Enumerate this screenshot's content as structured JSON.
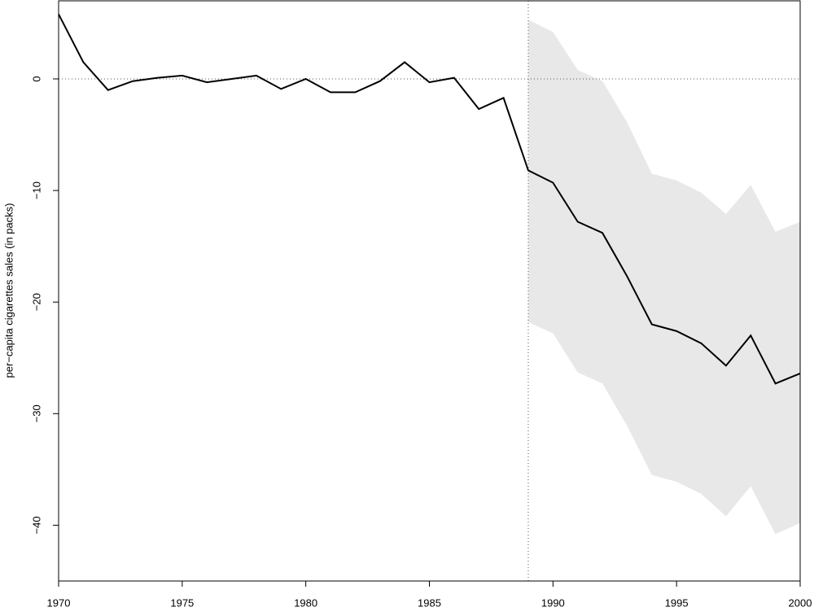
{
  "chart_data": {
    "type": "line",
    "y_label": "per−capita cigarettes sales (in packs)",
    "x": [
      1970,
      1971,
      1972,
      1973,
      1974,
      1975,
      1976,
      1977,
      1978,
      1979,
      1980,
      1981,
      1982,
      1983,
      1984,
      1985,
      1986,
      1987,
      1988,
      1989,
      1990,
      1991,
      1992,
      1993,
      1994,
      1995,
      1996,
      1997,
      1998,
      1999,
      2000
    ],
    "series": [
      {
        "color": "#000000",
        "values": [
          5.8,
          1.5,
          -1.0,
          -0.2,
          0.1,
          0.3,
          -0.3,
          0,
          0.3,
          -0.9,
          0,
          -1.2,
          -1.2,
          -0.2,
          1.5,
          -0.3,
          0.1,
          -2.7,
          -1.7,
          -8.2,
          -9.3,
          -12.8,
          -13.8,
          -17.7,
          -22.0,
          -22.6,
          -23.7,
          -25.7,
          -23.0,
          -27.3,
          -26.4
        ]
      }
    ],
    "band": {
      "color": "#e8e8e8",
      "upper": [
        null,
        null,
        null,
        null,
        null,
        null,
        null,
        null,
        null,
        null,
        null,
        null,
        null,
        null,
        null,
        null,
        null,
        null,
        null,
        5.3,
        4.2,
        0.8,
        -0.2,
        -3.9,
        -8.5,
        -9.1,
        -10.2,
        -12.1,
        -9.5,
        -13.7,
        -12.8
      ],
      "lower": [
        null,
        null,
        null,
        null,
        null,
        null,
        null,
        null,
        null,
        null,
        null,
        null,
        null,
        null,
        null,
        null,
        null,
        null,
        null,
        -21.8,
        -22.8,
        -26.3,
        -27.3,
        -31.1,
        -35.5,
        -36.1,
        -37.2,
        -39.2,
        -36.5,
        -40.8,
        -39.8
      ]
    },
    "hline": 0,
    "vline": 1989,
    "xlim": [
      1970,
      2000
    ],
    "xticks": [
      1970,
      1975,
      1980,
      1985,
      1990,
      1995,
      2000
    ],
    "ylim": [
      -45,
      7
    ],
    "yticks": [
      {
        "value": -40,
        "label": "−40"
      },
      {
        "value": -30,
        "label": "−30"
      },
      {
        "value": -20,
        "label": "−20"
      },
      {
        "value": -10,
        "label": "−10"
      },
      0
    ]
  }
}
